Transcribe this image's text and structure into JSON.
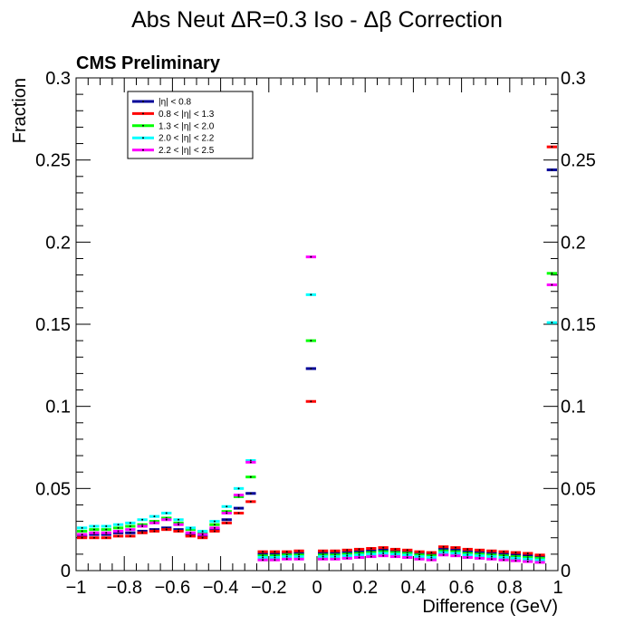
{
  "chart_data": {
    "type": "line",
    "title": "Abs Neut ΔR=0.3 Iso - Δβ Correction",
    "label": "CMS Preliminary",
    "xlabel": "Difference (GeV)",
    "ylabel": "Fraction",
    "xlim": [
      -1,
      1
    ],
    "ylim": [
      0,
      0.3
    ],
    "xticks": [
      "−1",
      "−0.8",
      "−0.6",
      "−0.4",
      "−0.2",
      "0",
      "0.2",
      "0.4",
      "0.6",
      "0.8",
      "1"
    ],
    "yticks": [
      "0",
      "0.05",
      "0.1",
      "0.15",
      "0.2",
      "0.25",
      "0.3"
    ],
    "legend_position": "top-left",
    "grid": false,
    "bin_width": 0.05,
    "x": [
      -0.975,
      -0.925,
      -0.875,
      -0.825,
      -0.775,
      -0.725,
      -0.675,
      -0.625,
      -0.575,
      -0.525,
      -0.475,
      -0.425,
      -0.375,
      -0.325,
      -0.275,
      -0.225,
      -0.175,
      -0.125,
      -0.075,
      -0.025,
      0.025,
      0.075,
      0.125,
      0.175,
      0.225,
      0.275,
      0.325,
      0.375,
      0.425,
      0.475,
      0.525,
      0.575,
      0.625,
      0.675,
      0.725,
      0.775,
      0.825,
      0.875,
      0.925,
      0.975
    ],
    "series": [
      {
        "name": "|η| < 0.8",
        "color": "#000099",
        "values": [
          0.021,
          0.022,
          0.022,
          0.023,
          0.023,
          0.024,
          0.025,
          0.026,
          0.025,
          0.022,
          0.021,
          0.025,
          0.031,
          0.038,
          0.047,
          0.01,
          0.01,
          0.0105,
          0.0105,
          0.123,
          0.0105,
          0.0105,
          0.011,
          0.0115,
          0.012,
          0.0125,
          0.012,
          0.0115,
          0.0105,
          0.01,
          0.013,
          0.0125,
          0.0115,
          0.011,
          0.0105,
          0.01,
          0.0095,
          0.009,
          0.0085,
          0.244
        ]
      },
      {
        "name": "0.8 < |η| < 1.3",
        "color": "#ff0000",
        "values": [
          0.02,
          0.02,
          0.02,
          0.021,
          0.021,
          0.023,
          0.024,
          0.025,
          0.024,
          0.021,
          0.02,
          0.024,
          0.029,
          0.035,
          0.042,
          0.0115,
          0.0115,
          0.0115,
          0.012,
          0.103,
          0.012,
          0.012,
          0.0125,
          0.013,
          0.0135,
          0.014,
          0.013,
          0.0125,
          0.0115,
          0.011,
          0.0145,
          0.014,
          0.013,
          0.0125,
          0.012,
          0.0115,
          0.011,
          0.0105,
          0.0095,
          0.258
        ]
      },
      {
        "name": "1.3 < |η| < 2.0",
        "color": "#00ff00",
        "values": [
          0.024,
          0.025,
          0.025,
          0.026,
          0.027,
          0.028,
          0.03,
          0.032,
          0.029,
          0.025,
          0.023,
          0.028,
          0.036,
          0.045,
          0.057,
          0.009,
          0.009,
          0.0095,
          0.0095,
          0.14,
          0.0095,
          0.0095,
          0.01,
          0.0105,
          0.011,
          0.0115,
          0.011,
          0.0105,
          0.0095,
          0.009,
          0.012,
          0.0115,
          0.0105,
          0.01,
          0.0095,
          0.009,
          0.0085,
          0.008,
          0.0075,
          0.181
        ]
      },
      {
        "name": "2.0 < |η| < 2.2",
        "color": "#00ffff",
        "values": [
          0.026,
          0.027,
          0.027,
          0.028,
          0.029,
          0.031,
          0.033,
          0.035,
          0.031,
          0.026,
          0.024,
          0.03,
          0.039,
          0.05,
          0.067,
          0.008,
          0.008,
          0.0085,
          0.0085,
          0.168,
          0.0085,
          0.0085,
          0.009,
          0.0095,
          0.01,
          0.0105,
          0.01,
          0.0095,
          0.0085,
          0.008,
          0.011,
          0.0105,
          0.0095,
          0.009,
          0.0085,
          0.008,
          0.0075,
          0.007,
          0.0065,
          0.151
        ]
      },
      {
        "name": "2.2 < |η| < 2.5",
        "color": "#ff00ff",
        "values": [
          0.022,
          0.023,
          0.023,
          0.024,
          0.025,
          0.027,
          0.029,
          0.031,
          0.028,
          0.023,
          0.022,
          0.026,
          0.035,
          0.046,
          0.066,
          0.0065,
          0.0065,
          0.007,
          0.007,
          0.191,
          0.007,
          0.007,
          0.0075,
          0.008,
          0.0085,
          0.009,
          0.0085,
          0.008,
          0.007,
          0.0065,
          0.0095,
          0.009,
          0.008,
          0.0075,
          0.007,
          0.0065,
          0.006,
          0.0055,
          0.005,
          0.174
        ]
      }
    ]
  }
}
